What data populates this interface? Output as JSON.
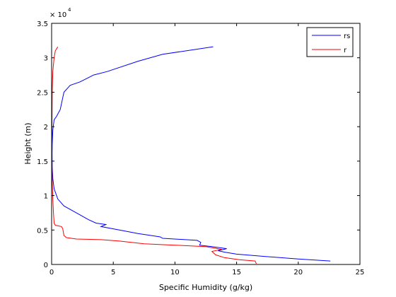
{
  "chart_data": {
    "type": "line",
    "xlabel": "Specific Humidity (g/kg)",
    "ylabel": "Height (m)",
    "y_exponent_label": "× 10",
    "y_exponent_power": "4",
    "xlim": [
      0,
      25
    ],
    "ylim": [
      0,
      35000
    ],
    "x_ticks": [
      0,
      5,
      10,
      15,
      20,
      25
    ],
    "x_tick_labels": [
      "0",
      "5",
      "10",
      "15",
      "20",
      "25"
    ],
    "y_ticks": [
      0,
      5000,
      10000,
      15000,
      20000,
      25000,
      30000,
      35000
    ],
    "y_tick_labels": [
      "0",
      "0.5",
      "1",
      "1.5",
      "2",
      "2.5",
      "3",
      "3.5"
    ],
    "grid": false,
    "legend_position": "top-right",
    "series": [
      {
        "name": "rs",
        "color": "#0000ff",
        "x": [
          22.6,
          20.0,
          17.0,
          15.0,
          14.0,
          13.5,
          14.2,
          13.0,
          12.0,
          12.1,
          11.8,
          9.0,
          8.8,
          7.0,
          5.5,
          4.0,
          4.4,
          3.6,
          3.0,
          2.0,
          1.0,
          0.5,
          0.2,
          0.1,
          0.05,
          0.04,
          0.05,
          0.1,
          0.2,
          0.4,
          0.7,
          1.0,
          1.5,
          2.3,
          3.4,
          4.5,
          7.0,
          9.0,
          13.1
        ],
        "y": [
          500,
          800,
          1200,
          1500,
          1800,
          2000,
          2300,
          2600,
          2800,
          3200,
          3500,
          3800,
          4000,
          4500,
          5000,
          5500,
          5800,
          6000,
          6500,
          7500,
          8500,
          9500,
          11000,
          12500,
          14000,
          16000,
          17500,
          19500,
          21000,
          21500,
          22500,
          25000,
          26000,
          26500,
          27500,
          28000,
          29500,
          30500,
          31600
        ]
      },
      {
        "name": "r",
        "color": "#ff0000",
        "x": [
          16.6,
          16.5,
          15.2,
          14.0,
          13.3,
          13.0,
          13.8,
          12.5,
          10.0,
          7.5,
          5.5,
          4.0,
          2.0,
          1.2,
          1.0,
          0.9,
          0.8,
          0.3,
          0.2,
          0.15,
          0.1,
          0.05,
          0.03,
          0.03,
          0.05,
          0.1,
          0.2,
          0.3,
          0.5
        ],
        "y": [
          100,
          500,
          700,
          1000,
          1400,
          1900,
          2200,
          2600,
          2800,
          3000,
          3400,
          3600,
          3700,
          3900,
          4200,
          5200,
          5500,
          5700,
          6000,
          7500,
          9500,
          12000,
          15000,
          20000,
          25500,
          28000,
          30000,
          31000,
          31600
        ]
      }
    ]
  }
}
